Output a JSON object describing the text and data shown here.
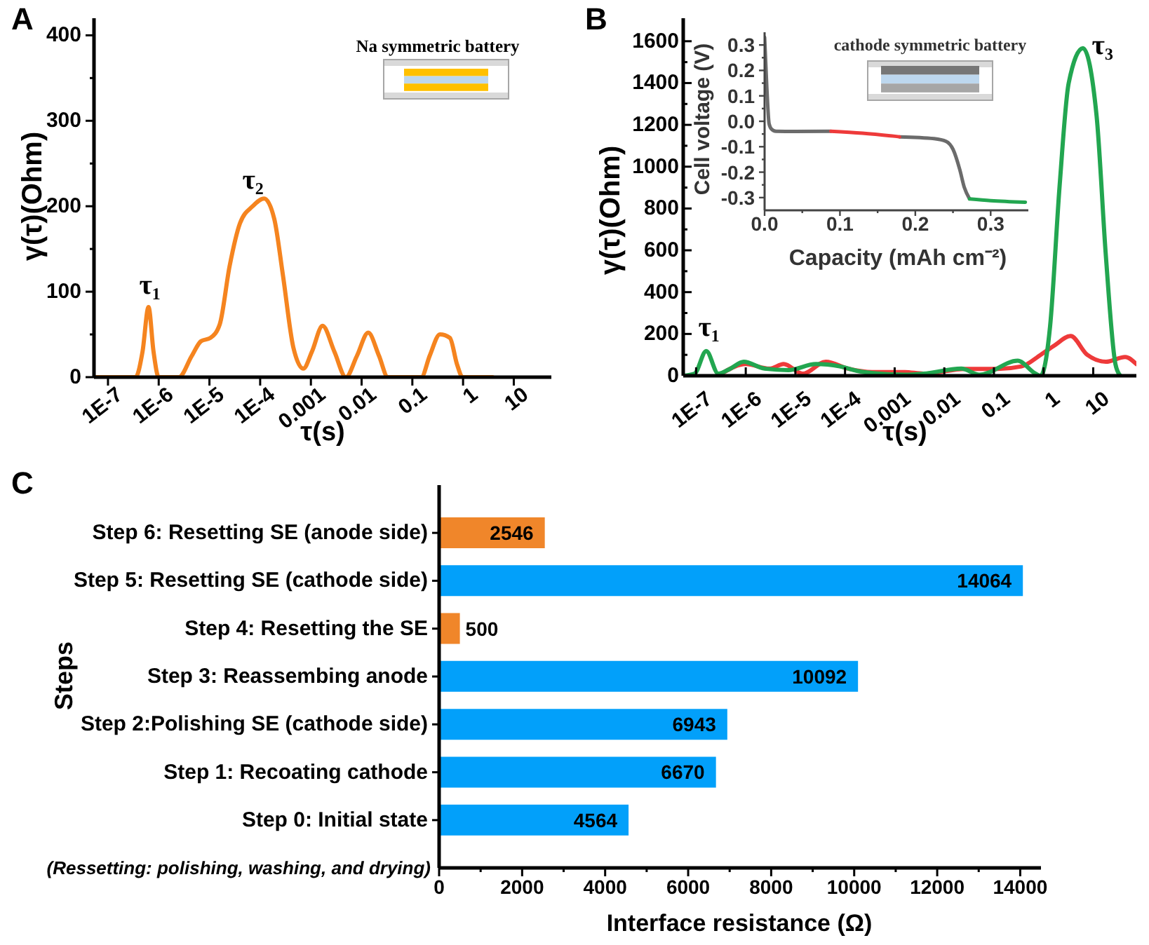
{
  "chart_data": [
    {
      "type": "line",
      "title": "A",
      "xlabel": "τ(s)",
      "ylabel": "γ(τ)(Ohm)",
      "log": "x",
      "xlim": [
        5.3e-08,
        55
      ],
      "ylim": [
        0,
        420
      ],
      "xticks": [
        {
          "value": 1e-07,
          "label": "1E-7"
        },
        {
          "value": 1e-06,
          "label": "1E-6"
        },
        {
          "value": 1e-05,
          "label": "1E-5"
        },
        {
          "value": 0.0001,
          "label": "1E-4"
        },
        0.001,
        0.01,
        0.1,
        1,
        10
      ],
      "yticks": [
        0,
        {
          "value": 50,
          "label": null
        },
        100,
        {
          "value": 150,
          "label": null
        },
        200,
        {
          "value": 250,
          "label": null
        },
        300,
        {
          "value": 350,
          "label": null
        },
        400
      ],
      "series": [
        {
          "color": "#f5841f",
          "x": [
            5.3e-08,
            3.5e-07,
            4.8e-07,
            6.3e-07,
            7.9e-07,
            1e-06,
            2.5e-06,
            4.5e-06,
            6.8e-06,
            1.05e-05,
            1.6e-05,
            2.5e-05,
            4e-05,
            7.1e-05,
            0.00012,
            0.00019,
            0.00028,
            0.00045,
            0.00071,
            0.00105,
            0.0017,
            0.0029,
            0.0049,
            0.0081,
            0.0135,
            0.022,
            0.033,
            0.15,
            0.22,
            0.35,
            0.55,
            0.76,
            0.98,
            3.8
          ],
          "values": [
            0,
            0,
            30,
            82,
            30,
            0,
            0,
            25,
            42,
            46,
            62,
            130,
            180,
            200,
            209,
            185,
            120,
            35,
            10,
            30,
            60,
            30,
            0,
            25,
            52,
            25,
            0,
            0,
            25,
            50,
            46,
            15,
            0,
            0
          ]
        }
      ],
      "annotations": [
        {
          "text": "τ₁",
          "x": 6.3e-07,
          "y": 82
        },
        {
          "text": "τ₂",
          "x": 0.00012,
          "y": 209
        },
        "Na symmetric battery"
      ]
    },
    {
      "type": "line",
      "title": "B",
      "xlabel": "τ(s)",
      "ylabel": "γ(τ)(Ohm)",
      "log": "x",
      "xlim": [
        5.5e-08,
        74
      ],
      "ylim": [
        0,
        1710
      ],
      "xticks": [
        {
          "value": 1e-07,
          "label": "1E-7"
        },
        {
          "value": 1e-06,
          "label": "1E-6"
        },
        {
          "value": 1e-05,
          "label": "1E-5"
        },
        {
          "value": 0.0001,
          "label": "1E-4"
        },
        0.001,
        0.01,
        0.1,
        1,
        10
      ],
      "yticks": [
        0,
        {
          "value": 100,
          "label": null
        },
        200,
        {
          "value": 300,
          "label": null
        },
        400,
        {
          "value": 500,
          "label": null
        },
        600,
        {
          "value": 700,
          "label": null
        },
        800,
        {
          "value": 900,
          "label": null
        },
        1000,
        {
          "value": 1100,
          "label": null
        },
        1200,
        {
          "value": 1300,
          "label": null
        },
        1400,
        {
          "value": 1500,
          "label": null
        },
        1600
      ],
      "series": [
        {
          "color": "#ee3a3a",
          "x": [
            3.5e-07,
            1e-06,
            3e-06,
            5.8e-06,
            1.4e-05,
            4.1e-05,
            0.00012,
            0.00035,
            0.0016,
            0.0038,
            0.027,
            0.12,
            0.36,
            0.87,
            1.66,
            3.5,
            7.6,
            18,
            44,
            74
          ],
          "values": [
            15,
            56,
            34,
            56,
            10,
            67,
            33,
            18,
            18,
            10,
            33,
            33,
            45,
            100,
            145,
            190,
            100,
            67,
            90,
            56
          ]
        },
        {
          "color": "#22a650",
          "x": [
            5.5e-08,
            9.3e-08,
            1.6e-07,
            2.8e-07,
            4.8e-07,
            9.1e-07,
            2.4e-06,
            7.2e-06,
            2.6e-05,
            7.8e-05,
            0.00019,
            0.00044,
            0.0016,
            0.0038,
            0.022,
            0.051,
            0.3,
            0.69,
            0.87,
            1.35,
            2.1,
            3.2,
            6.2,
            11.7,
            18,
            28,
            35
          ],
          "values": [
            0,
            10,
            118,
            10,
            33,
            67,
            34,
            27,
            56,
            45,
            22,
            11,
            5,
            10,
            34,
            5,
            72,
            10,
            0,
            235,
            906,
            1399,
            1567,
            1242,
            571,
            56,
            0
          ]
        }
      ],
      "annotations": [
        {
          "text": "τ₁",
          "x": 1.6e-07,
          "y": 118
        },
        {
          "text": "τ₃",
          "x": 6.2,
          "y": 1567
        }
      ]
    },
    {
      "type": "line",
      "xlabel": "Capacity (mAh cm⁻²)",
      "ylabel": "Cell voltage (V)",
      "xlim": [
        0,
        0.35
      ],
      "ylim": [
        -0.35,
        0.35
      ],
      "xticks": [
        {
          "value": 0,
          "label": "0.0"
        },
        {
          "value": 0.05,
          "label": null
        },
        0.1,
        {
          "value": 0.15,
          "label": null
        },
        0.2,
        {
          "value": 0.25,
          "label": null
        },
        0.3
      ],
      "yticks": [
        -0.3,
        {
          "value": -0.25,
          "label": null
        },
        -0.2,
        {
          "value": -0.15,
          "label": null
        },
        -0.1,
        {
          "value": -0.05,
          "label": null
        },
        {
          "value": 0,
          "label": "0.0"
        },
        {
          "value": 0.05,
          "label": null
        },
        0.1,
        {
          "value": 0.15,
          "label": null
        },
        0.2,
        {
          "value": 0.25,
          "label": null
        },
        0.3
      ],
      "series": [
        {
          "color": "#6b6b6b",
          "x": [
            0,
            0.003,
            0.006,
            0.009,
            0.015,
            0.04,
            0.088,
            0.13,
            0.179,
            0.225,
            0.241,
            0.25,
            0.259,
            0.265,
            0.272
          ],
          "values": [
            0.33,
            0.13,
            -0.01,
            -0.03,
            -0.039,
            -0.04,
            -0.039,
            null,
            -0.061,
            -0.068,
            -0.079,
            -0.11,
            -0.19,
            -0.26,
            -0.305
          ]
        },
        {
          "color": "#ee3a3a",
          "x": [
            0.088,
            0.13,
            0.179
          ],
          "values": [
            -0.039,
            -0.047,
            -0.061
          ]
        },
        {
          "color": "#22a650",
          "x": [
            0.272,
            0.3,
            0.346
          ],
          "values": [
            -0.305,
            -0.312,
            -0.318
          ]
        }
      ],
      "annotations": [
        "cathode symmetric battery"
      ]
    },
    {
      "type": "bar",
      "orientation": "horizontal",
      "title": "C",
      "ylabel": "Steps",
      "xlabel": "Interface resistance (Ω)",
      "categories": [
        "Step 6: Resetting SE (anode side)",
        "Step 5: Resetting SE (cathode side)",
        "Step 4: Resetting the SE",
        "Step 3: Reassembing anode",
        "Step 2:Polishing SE (cathode side)",
        "Step 1: Recoating cathode",
        "Step 0: Initial state"
      ],
      "values": [
        2546,
        14064,
        500,
        10092,
        6943,
        6670,
        4564
      ],
      "colors": [
        "#f0862a",
        "#02a0fa",
        "#f0862a",
        "#02a0fa",
        "#02a0fa",
        "#02a0fa",
        "#02a0fa"
      ],
      "xlim": [
        0,
        14500
      ],
      "xticks": [
        0,
        {
          "value": 1000,
          "label": null
        },
        2000,
        {
          "value": 3000,
          "label": null
        },
        4000,
        {
          "value": 5000,
          "label": null
        },
        6000,
        {
          "value": 7000,
          "label": null
        },
        8000,
        {
          "value": 9000,
          "label": null
        },
        10000,
        {
          "value": 11000,
          "label": null
        },
        12000,
        {
          "value": 13000,
          "label": null
        },
        14000
      ],
      "data_labels": true,
      "annotations": [
        "(Ressetting: polishing, washing, and drying)"
      ]
    }
  ]
}
